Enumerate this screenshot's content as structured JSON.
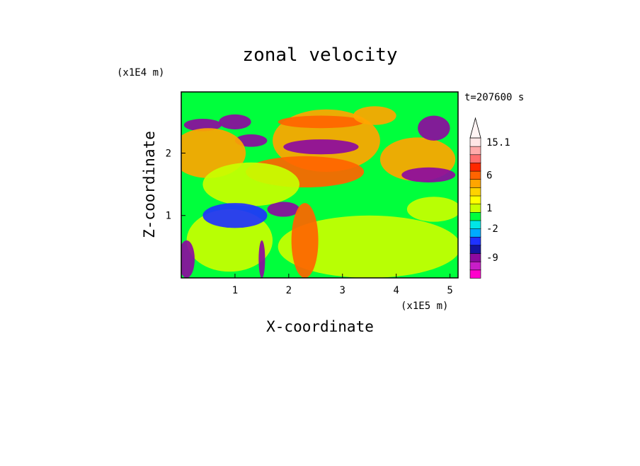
{
  "chart_data": {
    "type": "heatmap",
    "title": "zonal velocity",
    "xlabel": "X-coordinate",
    "ylabel": "Z-coordinate",
    "x_unit": "(x1E5 m)",
    "y_unit": "(x1E4 m)",
    "time_label": "t=207600 s",
    "xlim": [
      0,
      5.15
    ],
    "ylim": [
      0,
      2.98
    ],
    "x_ticks": [
      1,
      2,
      3,
      4,
      5
    ],
    "y_ticks": [
      1,
      2
    ],
    "x_tick_labels": [
      "1",
      "2",
      "3",
      "4",
      "5"
    ],
    "y_tick_labels": [
      "1",
      "2"
    ],
    "grid": false,
    "colorbar": {
      "levels_labeled": [
        "15.1",
        "6",
        "1",
        "-2",
        "-9"
      ],
      "colors": [
        "#ff00cc",
        "#c81ec8",
        "#8c0aa0",
        "#1414a0",
        "#1e32ff",
        "#00aaff",
        "#00e6e6",
        "#00ff3c",
        "#c8ff00",
        "#ffff00",
        "#ffd200",
        "#ffa500",
        "#ff6400",
        "#ff2800",
        "#ff6e6e",
        "#ffaaaa",
        "#ffe6e6"
      ]
    },
    "regions": [
      {
        "type": "ellipse",
        "cx": 2.7,
        "cy": 2.2,
        "rx": 1.0,
        "ry": 0.5,
        "value": 3.5
      },
      {
        "type": "ellipse",
        "cx": 2.6,
        "cy": 2.5,
        "rx": 0.8,
        "ry": 0.1,
        "value": 6.0
      },
      {
        "type": "ellipse",
        "cx": 2.6,
        "cy": 2.1,
        "rx": 0.7,
        "ry": 0.12,
        "value": -9.0
      },
      {
        "type": "ellipse",
        "cx": 2.3,
        "cy": 1.7,
        "rx": 1.1,
        "ry": 0.25,
        "value": 6.0
      },
      {
        "type": "ellipse",
        "cx": 4.4,
        "cy": 1.9,
        "rx": 0.7,
        "ry": 0.35,
        "value": 4.0
      },
      {
        "type": "ellipse",
        "cx": 4.7,
        "cy": 2.4,
        "rx": 0.3,
        "ry": 0.2,
        "value": -9.0
      },
      {
        "type": "ellipse",
        "cx": 4.6,
        "cy": 1.65,
        "rx": 0.5,
        "ry": 0.12,
        "value": -9.0
      },
      {
        "type": "ellipse",
        "cx": 0.4,
        "cy": 2.45,
        "rx": 0.35,
        "ry": 0.1,
        "value": -9.0
      },
      {
        "type": "ellipse",
        "cx": 1.0,
        "cy": 2.5,
        "rx": 0.3,
        "ry": 0.12,
        "value": -9.0
      },
      {
        "type": "ellipse",
        "cx": 1.3,
        "cy": 2.2,
        "rx": 0.3,
        "ry": 0.1,
        "value": -9.0
      },
      {
        "type": "ellipse",
        "cx": 1.9,
        "cy": 1.1,
        "rx": 0.3,
        "ry": 0.12,
        "value": -9.0
      },
      {
        "type": "ellipse",
        "cx": 0.5,
        "cy": 2.0,
        "rx": 0.7,
        "ry": 0.4,
        "value": 4.0
      },
      {
        "type": "ellipse",
        "cx": 1.3,
        "cy": 1.5,
        "rx": 0.9,
        "ry": 0.35,
        "value": 1.0
      },
      {
        "type": "ellipse",
        "cx": 3.5,
        "cy": 0.5,
        "rx": 1.7,
        "ry": 0.5,
        "value": 1.0
      },
      {
        "type": "ellipse",
        "cx": 0.9,
        "cy": 0.6,
        "rx": 0.8,
        "ry": 0.5,
        "value": 0.5
      },
      {
        "type": "ellipse",
        "cx": 4.7,
        "cy": 1.1,
        "rx": 0.5,
        "ry": 0.2,
        "value": 1.0
      },
      {
        "type": "ellipse",
        "cx": 2.3,
        "cy": 0.6,
        "rx": 0.25,
        "ry": 0.6,
        "value": 6.0
      },
      {
        "type": "ellipse",
        "cx": 0.1,
        "cy": 0.3,
        "rx": 0.15,
        "ry": 0.3,
        "value": -9.0
      },
      {
        "type": "ellipse",
        "cx": 1.5,
        "cy": 0.3,
        "rx": 0.06,
        "ry": 0.3,
        "value": -9.0
      },
      {
        "type": "ellipse",
        "cx": 3.6,
        "cy": 2.6,
        "rx": 0.4,
        "ry": 0.15,
        "value": 4.0
      },
      {
        "type": "ellipse",
        "cx": 1.0,
        "cy": 1.0,
        "rx": 0.6,
        "ry": 0.2,
        "value": -2.0
      }
    ]
  }
}
